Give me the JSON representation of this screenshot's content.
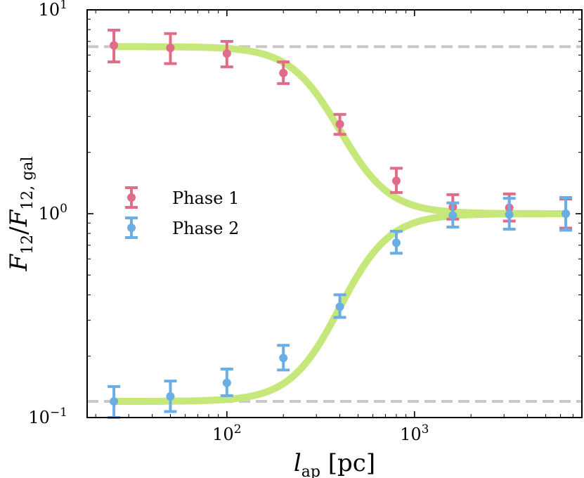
{
  "chart_data": {
    "type": "scatter",
    "title": "",
    "xscale": "log",
    "yscale": "log",
    "xlim": [
      18,
      7800
    ],
    "ylim": [
      0.1,
      10
    ],
    "xlabel": {
      "var": "l",
      "sub": "ap",
      "unit": "[pc]"
    },
    "ylabel": {
      "num": "F",
      "num_sub": "12",
      "den": "F",
      "den_sub": "12, gal"
    },
    "x_ticks": [
      {
        "value": 100,
        "base": "10",
        "exp": "2"
      },
      {
        "value": 1000,
        "base": "10",
        "exp": "3"
      }
    ],
    "y_ticks": [
      {
        "value": 0.1,
        "base": "10",
        "exp": "−1"
      },
      {
        "value": 1,
        "base": "10",
        "exp": "0"
      },
      {
        "value": 10,
        "base": "10",
        "exp": "1"
      }
    ],
    "reference_lines": [
      6.6,
      0.12
    ],
    "legend": {
      "position": "center-left"
    },
    "series": [
      {
        "name": "Phase 1",
        "color": "#e06c8a",
        "x": [
          25,
          50,
          100,
          200,
          400,
          800,
          1600,
          3200,
          6400
        ],
        "y": [
          6.7,
          6.5,
          6.1,
          4.9,
          2.75,
          1.45,
          1.08,
          1.07,
          1.0
        ],
        "err_low": [
          1.15,
          1.05,
          0.85,
          0.55,
          0.3,
          0.18,
          0.14,
          0.15,
          0.15
        ],
        "err_high": [
          1.25,
          1.15,
          0.9,
          0.65,
          0.32,
          0.22,
          0.16,
          0.18,
          0.18
        ]
      },
      {
        "name": "Phase 2",
        "color": "#6aaee6",
        "x": [
          25,
          50,
          100,
          200,
          400,
          800,
          1600,
          3200,
          6400
        ],
        "y": [
          0.12,
          0.127,
          0.148,
          0.196,
          0.35,
          0.72,
          0.98,
          0.99,
          1.0
        ],
        "err_low": [
          0.02,
          0.02,
          0.02,
          0.025,
          0.04,
          0.08,
          0.12,
          0.15,
          0.17
        ],
        "err_high": [
          0.022,
          0.024,
          0.025,
          0.03,
          0.05,
          0.1,
          0.15,
          0.2,
          0.2
        ]
      }
    ],
    "model_curve": {
      "name": "model",
      "color": "#c6e87a",
      "upper_start": 6.6,
      "lower_start": 0.12,
      "end_value": 1.0,
      "transition_x": 400
    }
  }
}
